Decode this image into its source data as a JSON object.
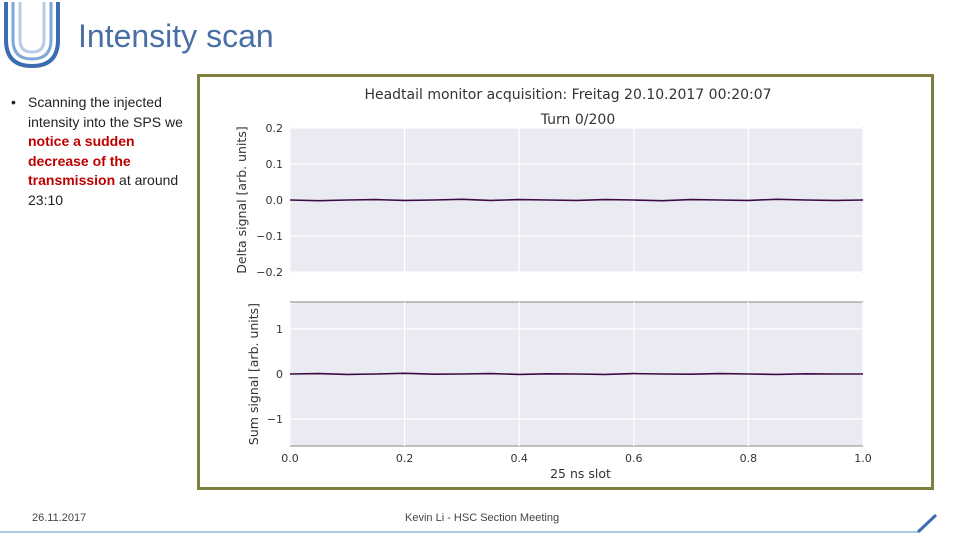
{
  "slide": {
    "title": "Intensity scan",
    "bullet_parts": [
      "Scanning the injected intensity into the SPS we ",
      "notice a sudden decrease of the transmission",
      " at around 23:10"
    ],
    "footer_date": "26.11.2017",
    "footer_center": "Kevin Li - HSC Section Meeting"
  },
  "chart_data": {
    "type": "line",
    "title": "Headtail monitor acquisition: Freitag 20.10.2017 00:20:07",
    "subtitle": "Turn 0/200",
    "xlabel": "25 ns slot",
    "x_ticks": [
      "0.0",
      "0.2",
      "0.4",
      "0.6",
      "0.8",
      "1.0"
    ],
    "xlim": [
      0,
      1
    ],
    "grid": true,
    "line_color": "#3b0a45",
    "panels": [
      {
        "ylabel": "Delta signal [arb. units]",
        "ylim": [
          -0.2,
          0.2
        ],
        "y_ticks": [
          "0.2",
          "0.1",
          "0.0",
          "−0.1",
          "−0.2"
        ],
        "y_values": [
          0.2,
          0.1,
          0.0,
          -0.1,
          -0.2
        ],
        "series_x": [
          0,
          0.05,
          0.1,
          0.15,
          0.2,
          0.25,
          0.3,
          0.35,
          0.4,
          0.45,
          0.5,
          0.55,
          0.6,
          0.65,
          0.7,
          0.75,
          0.8,
          0.85,
          0.9,
          0.95,
          1.0
        ],
        "series_y": [
          0.0,
          -0.002,
          0.0,
          0.001,
          -0.001,
          0.0,
          0.002,
          -0.001,
          0.001,
          0.0,
          -0.001,
          0.001,
          0.0,
          -0.002,
          0.001,
          0.0,
          -0.001,
          0.002,
          0.0,
          -0.001,
          0.0
        ]
      },
      {
        "ylabel": "Sum signal [arb. units]",
        "ylim": [
          -1.6,
          1.6
        ],
        "y_ticks": [
          "1",
          "0",
          "−1"
        ],
        "y_values": [
          1,
          0,
          -1
        ],
        "series_x": [
          0,
          0.05,
          0.1,
          0.15,
          0.2,
          0.25,
          0.3,
          0.35,
          0.4,
          0.45,
          0.5,
          0.55,
          0.6,
          0.65,
          0.7,
          0.75,
          0.8,
          0.85,
          0.9,
          0.95,
          1.0
        ],
        "series_y": [
          0.0,
          0.01,
          -0.01,
          0.0,
          0.015,
          -0.005,
          0.0,
          0.01,
          -0.01,
          0.005,
          0.0,
          -0.01,
          0.01,
          0.0,
          -0.005,
          0.01,
          0.0,
          -0.01,
          0.005,
          0.0,
          0.0
        ]
      }
    ]
  },
  "colors": {
    "title": "#4a6fa5",
    "highlight": "#c00000",
    "border": "#7f7f3f",
    "plot_bg": "#eaeaf2"
  }
}
